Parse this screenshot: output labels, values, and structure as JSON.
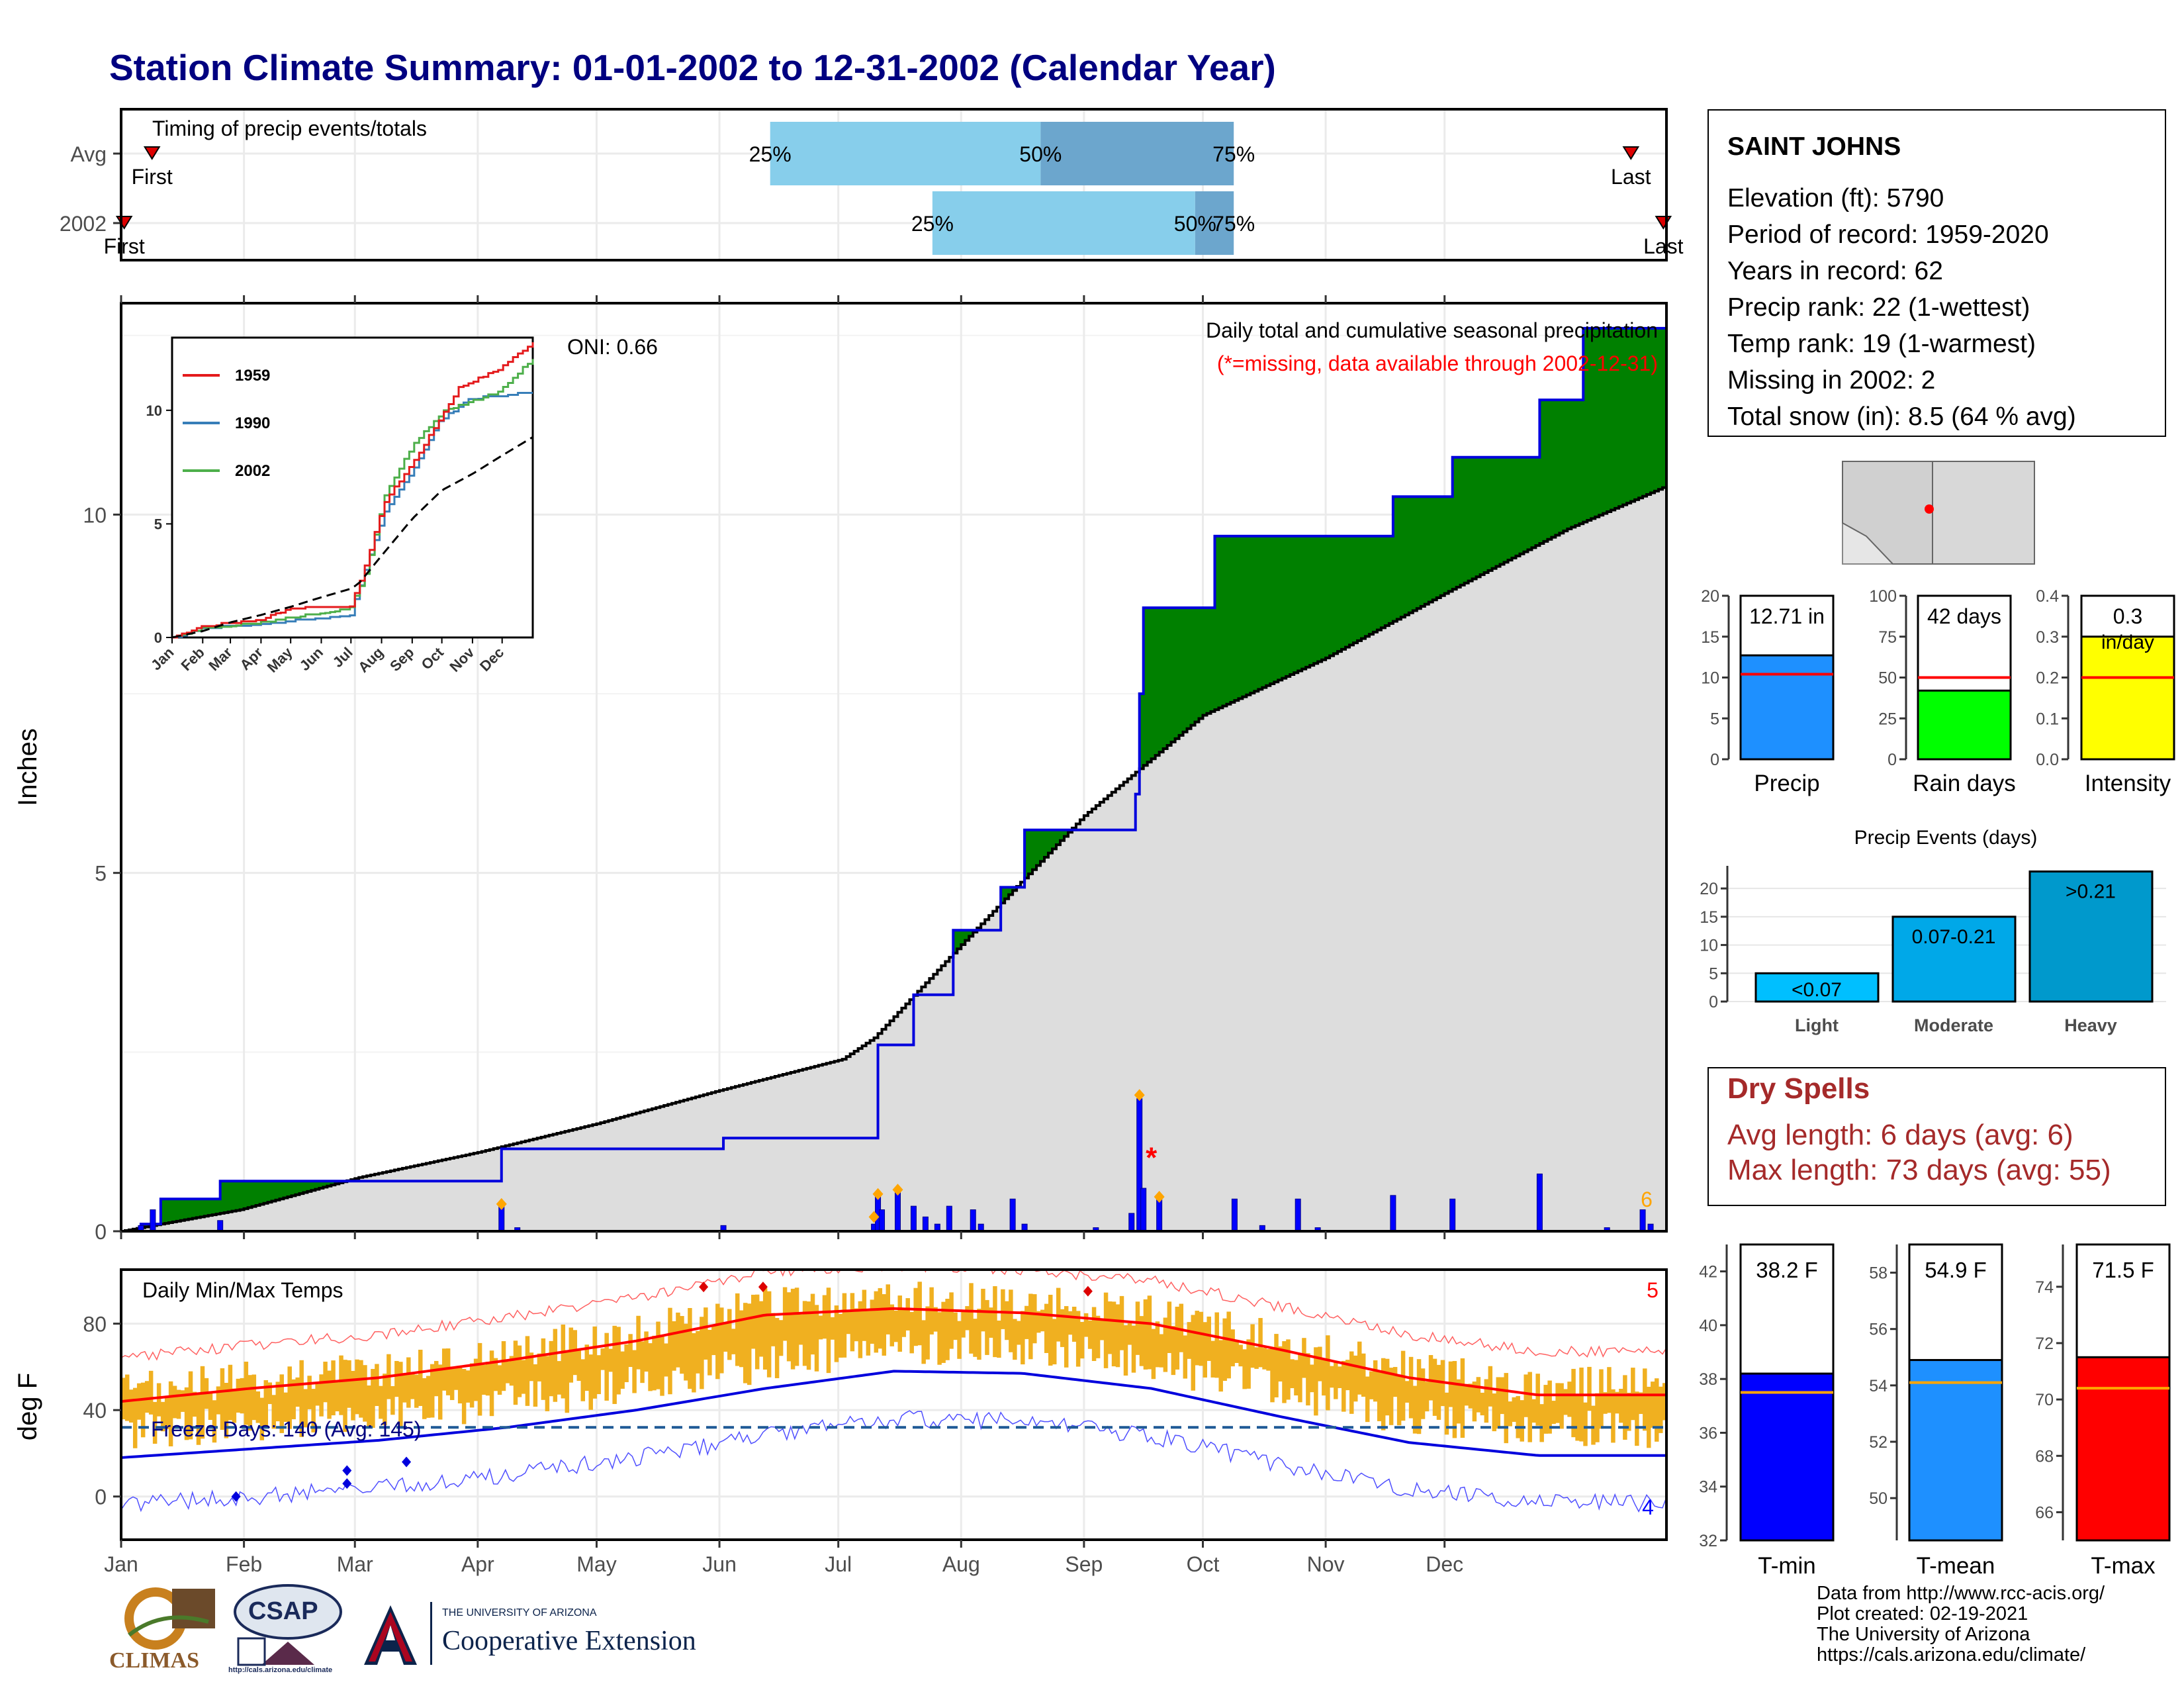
{
  "title": "Station Climate Summary: 01-01-2002 to 12-31-2002 (Calendar Year)",
  "timing": {
    "title": "Timing of precip events/totals",
    "rows": [
      {
        "label": "Avg",
        "q25": 0.42,
        "q50": 0.595,
        "q75": 0.72,
        "first": 0.02,
        "last": 0.977,
        "first_label": "First",
        "last_label": "Last"
      },
      {
        "label": "2002",
        "q25": 0.525,
        "q50": 0.695,
        "q75": 0.72,
        "first": 0.002,
        "last": 0.998,
        "first_label": "First",
        "last_label": "Last"
      }
    ],
    "pct_labels": [
      "25%",
      "50%",
      "75%"
    ]
  },
  "precip_panel": {
    "ylabel": "Inches",
    "yticks": [
      "0",
      "5",
      "10"
    ],
    "annotation1": "Daily total and cumulative seasonal precipitation",
    "annotation2": "(*=missing, data available through 2002-12-31)",
    "oni": "ONI: 0.66",
    "count_label": "6"
  },
  "inset": {
    "legend": [
      "1959",
      "1990",
      "2002"
    ],
    "yticks": [
      "0",
      "5",
      "10"
    ],
    "months": [
      "Jan",
      "Feb",
      "Mar",
      "Apr",
      "May",
      "Jun",
      "Jul",
      "Aug",
      "Sep",
      "Oct",
      "Nov",
      "Dec"
    ]
  },
  "temp_panel": {
    "ylabel": "deg F",
    "title": "Daily Min/Max Temps",
    "yticks": [
      "0",
      "40",
      "80"
    ],
    "freeze_label": "Freeze Days: 140 (Avg: 145)",
    "max_count": "5",
    "min_count": "4"
  },
  "months": [
    "Jan",
    "Feb",
    "Mar",
    "Apr",
    "May",
    "Jun",
    "Jul",
    "Aug",
    "Sep",
    "Oct",
    "Nov",
    "Dec"
  ],
  "station": {
    "name": "SAINT JOHNS",
    "lines": [
      "Elevation (ft): 5790",
      "Period of record: 1959-2020",
      "Years in record: 62",
      "Precip rank: 22 (1-wettest)",
      "Temp rank: 19 (1-warmest)",
      "Missing in 2002: 2",
      "Total snow (in): 8.5 (64 % avg)"
    ]
  },
  "summary_bars": [
    {
      "name": "Precip",
      "value_label": "12.71 in",
      "value": 12.71,
      "avg": 10.4,
      "ymax": 20,
      "ticks": [
        "0",
        "5",
        "10",
        "15",
        "20"
      ],
      "color": "#1e90ff"
    },
    {
      "name": "Rain days",
      "value_label": "42 days",
      "value": 42,
      "avg": 50,
      "ymax": 100,
      "ticks": [
        "0",
        "25",
        "50",
        "75",
        "100"
      ],
      "color": "#00ff00"
    },
    {
      "name": "Intensity",
      "value_label": "0.3",
      "unit_label": "in/day",
      "value": 0.3,
      "avg": 0.2,
      "ymax": 0.4,
      "ticks": [
        "0.0",
        "0.1",
        "0.2",
        "0.3",
        "0.4"
      ],
      "color": "#ffff00"
    }
  ],
  "events": {
    "title": "Precip Events (days)",
    "ticks": [
      "0",
      "5",
      "10",
      "15",
      "20"
    ],
    "bars": [
      {
        "name": "Light",
        "label": "<0.07",
        "value": 5,
        "color": "#00bfff"
      },
      {
        "name": "Moderate",
        "label": "0.07-0.21",
        "value": 15,
        "color": "#00a8e8"
      },
      {
        "name": "Heavy",
        "label": ">0.21",
        "value": 23,
        "color": "#0099cc"
      }
    ]
  },
  "dry_spells": {
    "title": "Dry Spells",
    "avg": "Avg length: 6 days (avg: 6)",
    "max": "Max length: 73 days (avg: 55)"
  },
  "temp_bars": [
    {
      "name": "T-min",
      "value_label": "38.2 F",
      "value": 38.2,
      "avg": 37.5,
      "ymin": 32,
      "ymax": 43,
      "ticks": [
        "32",
        "34",
        "36",
        "38",
        "40",
        "42"
      ],
      "color": "#0000ff"
    },
    {
      "name": "T-mean",
      "value_label": "54.9 F",
      "value": 54.9,
      "avg": 54.1,
      "ymin": 48.5,
      "ymax": 59,
      "ticks": [
        "50",
        "52",
        "54",
        "56",
        "58"
      ],
      "color": "#1e90ff"
    },
    {
      "name": "T-max",
      "value_label": "71.5 F",
      "value": 71.5,
      "avg": 70.4,
      "ymin": 65,
      "ymax": 75.5,
      "ticks": [
        "66",
        "68",
        "70",
        "72",
        "74"
      ],
      "color": "#ff0000"
    }
  ],
  "logos": {
    "climas": "CLIMAS",
    "csap": "CSAP",
    "csap_url": "http://cals.arizona.edu/climate",
    "ua_line1": "THE UNIVERSITY OF ARIZONA",
    "ua_line2": "Cooperative Extension"
  },
  "footer": [
    "Data from http://www.rcc-acis.org/",
    "Plot created: 02-19-2021",
    "The University of Arizona",
    "https://cals.arizona.edu/climate/"
  ],
  "chart_data": [
    {
      "type": "line",
      "name": "cumulative precipitation",
      "ylabel": "Inches",
      "x": [
        "Jan",
        "Feb",
        "Mar",
        "Apr",
        "May",
        "Jun",
        "Jul",
        "Aug",
        "Sep",
        "Oct",
        "Nov",
        "Dec"
      ],
      "series": [
        {
          "name": "2002",
          "points": [
            [
              0,
              0
            ],
            [
              5,
              0.1
            ],
            [
              10,
              0.45
            ],
            [
              25,
              0.7
            ],
            [
              95,
              0.7
            ],
            [
              96,
              1.15
            ],
            [
              152,
              1.3
            ],
            [
              190,
              1.3
            ],
            [
              191,
              2.6
            ],
            [
              200,
              3.3
            ],
            [
              210,
              4.2
            ],
            [
              222,
              4.8
            ],
            [
              228,
              5.6
            ],
            [
              246,
              5.6
            ],
            [
              256,
              6.1
            ],
            [
              257,
              7.5
            ],
            [
              258,
              8.7
            ],
            [
              275,
              8.7
            ],
            [
              276,
              9.7
            ],
            [
              320,
              9.7
            ],
            [
              321,
              10.25
            ],
            [
              335,
              10.25
            ],
            [
              336,
              10.8
            ],
            [
              357,
              10.8
            ],
            [
              358,
              11.6
            ],
            [
              368,
              11.6
            ],
            [
              369,
              12.6
            ],
            [
              389,
              12.6
            ],
            [
              390,
              12.71
            ]
          ]
        },
        {
          "name": "Average",
          "points": [
            [
              0,
              0
            ],
            [
              30,
              0.3
            ],
            [
              60,
              0.75
            ],
            [
              90,
              1.1
            ],
            [
              120,
              1.5
            ],
            [
              150,
              1.95
            ],
            [
              182,
              2.4
            ],
            [
              190,
              2.7
            ],
            [
              212,
              4.0
            ],
            [
              243,
              5.8
            ],
            [
              273,
              7.2
            ],
            [
              304,
              8.0
            ],
            [
              334,
              8.9
            ],
            [
              365,
              9.8
            ],
            [
              390,
              10.4
            ]
          ]
        }
      ],
      "ylim": [
        0,
        12.8
      ]
    },
    {
      "type": "line",
      "name": "Daily Min/Max Temps",
      "ylabel": "deg F",
      "x": [
        "Jan",
        "Feb",
        "Mar",
        "Apr",
        "May",
        "Jun",
        "Jul",
        "Aug",
        "Sep",
        "Oct",
        "Nov",
        "Dec"
      ],
      "series": [
        {
          "name": "Avg max",
          "values": [
            44,
            50,
            55,
            63,
            72,
            84,
            87,
            85,
            80,
            68,
            55,
            47
          ]
        },
        {
          "name": "Avg min",
          "values": [
            18,
            22,
            26,
            32,
            40,
            50,
            58,
            57,
            50,
            37,
            25,
            19
          ]
        }
      ],
      "ylim": [
        -20,
        105
      ]
    }
  ]
}
